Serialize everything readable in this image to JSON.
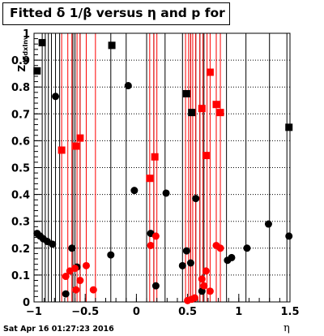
{
  "title": "Fitted δ 1/β versus η and p for",
  "timestamp": "Sat Apr 16 01:27:23 2016",
  "chart_data": {
    "type": "scatter",
    "xlabel": "η",
    "ylabel_main": "Z",
    "ylabel_sub": "dEdxInv",
    "xlim": [
      -1,
      1.5
    ],
    "ylim": [
      0,
      1
    ],
    "x_ticks": [
      "−1",
      "−0.5",
      "0",
      "0.5",
      "1",
      "1.5"
    ],
    "x_tick_values": [
      -1,
      -0.5,
      0,
      0.5,
      1,
      1.5
    ],
    "y_ticks": [
      "0",
      "0.1",
      "0.2",
      "0.3",
      "0.4",
      "0.5",
      "0.6",
      "0.7",
      "0.8",
      "0.9",
      "1"
    ],
    "y_tick_values": [
      0,
      0.1,
      0.2,
      0.3,
      0.4,
      0.5,
      0.6,
      0.7,
      0.8,
      0.9,
      1
    ],
    "grid": "horizontal dotted",
    "black_lines": [
      -0.92,
      -0.89,
      -0.86,
      -0.83,
      -0.79,
      -0.75,
      -0.62,
      -0.6,
      -0.55,
      -0.25,
      -0.1,
      0.1,
      0.17,
      0.28,
      0.45,
      0.53,
      0.58,
      0.62,
      0.66,
      0.78,
      0.88,
      1.07,
      1.3,
      1.47
    ],
    "red_lines": [
      -0.73,
      -0.67,
      -0.63,
      -0.58,
      -0.55,
      -0.49,
      -0.4,
      0.13,
      0.17,
      0.2,
      0.48,
      0.51,
      0.53,
      0.55,
      0.58,
      0.62,
      0.65,
      0.69,
      0.72,
      0.78,
      0.82
    ],
    "series": [
      {
        "color": "#000000",
        "points": [
          {
            "x": -0.97,
            "y": 0.255,
            "m": "c"
          },
          {
            "x": -0.94,
            "y": 0.245,
            "m": "c"
          },
          {
            "x": -0.91,
            "y": 0.235,
            "m": "c"
          },
          {
            "x": -0.87,
            "y": 0.225,
            "m": "c"
          },
          {
            "x": -0.82,
            "y": 0.215,
            "m": "c"
          },
          {
            "x": -0.79,
            "y": 0.765,
            "m": "c"
          },
          {
            "x": -0.63,
            "y": 0.2,
            "m": "c"
          },
          {
            "x": -0.58,
            "y": 0.13,
            "m": "c"
          },
          {
            "x": -0.69,
            "y": 0.03,
            "m": "c"
          },
          {
            "x": -0.25,
            "y": 0.175,
            "m": "c"
          },
          {
            "x": -0.08,
            "y": 0.805,
            "m": "c"
          },
          {
            "x": -0.02,
            "y": 0.415,
            "m": "c"
          },
          {
            "x": 0.14,
            "y": 0.255,
            "m": "c"
          },
          {
            "x": 0.19,
            "y": 0.06,
            "m": "c"
          },
          {
            "x": 0.29,
            "y": 0.405,
            "m": "c"
          },
          {
            "x": 0.45,
            "y": 0.135,
            "m": "c"
          },
          {
            "x": 0.49,
            "y": 0.19,
            "m": "c"
          },
          {
            "x": 0.53,
            "y": 0.145,
            "m": "c"
          },
          {
            "x": 0.58,
            "y": 0.385,
            "m": "c"
          },
          {
            "x": 0.64,
            "y": 0.04,
            "m": "c"
          },
          {
            "x": 0.89,
            "y": 0.155,
            "m": "c"
          },
          {
            "x": 0.93,
            "y": 0.165,
            "m": "c"
          },
          {
            "x": 1.08,
            "y": 0.2,
            "m": "c"
          },
          {
            "x": 1.29,
            "y": 0.29,
            "m": "c"
          },
          {
            "x": 1.49,
            "y": 0.245,
            "m": "c"
          },
          {
            "x": -0.97,
            "y": 0.86,
            "m": "s"
          },
          {
            "x": -0.92,
            "y": 0.965,
            "m": "s"
          },
          {
            "x": -0.24,
            "y": 0.955,
            "m": "s"
          },
          {
            "x": 0.49,
            "y": 0.775,
            "m": "s"
          },
          {
            "x": 0.54,
            "y": 0.705,
            "m": "s"
          },
          {
            "x": 1.49,
            "y": 0.65,
            "m": "s"
          }
        ]
      },
      {
        "color": "#ff0000",
        "points": [
          {
            "x": -0.69,
            "y": 0.095,
            "m": "c"
          },
          {
            "x": -0.65,
            "y": 0.115,
            "m": "c"
          },
          {
            "x": -0.6,
            "y": 0.125,
            "m": "c"
          },
          {
            "x": -0.59,
            "y": 0.045,
            "m": "c"
          },
          {
            "x": -0.55,
            "y": 0.08,
            "m": "c"
          },
          {
            "x": -0.49,
            "y": 0.135,
            "m": "c"
          },
          {
            "x": -0.42,
            "y": 0.045,
            "m": "c"
          },
          {
            "x": 0.14,
            "y": 0.21,
            "m": "c"
          },
          {
            "x": 0.19,
            "y": 0.245,
            "m": "c"
          },
          {
            "x": 0.5,
            "y": 0.005,
            "m": "c"
          },
          {
            "x": 0.54,
            "y": 0.01,
            "m": "c"
          },
          {
            "x": 0.57,
            "y": 0.015,
            "m": "c"
          },
          {
            "x": 0.64,
            "y": 0.085,
            "m": "c"
          },
          {
            "x": 0.66,
            "y": 0.06,
            "m": "c"
          },
          {
            "x": 0.68,
            "y": 0.115,
            "m": "c"
          },
          {
            "x": 0.72,
            "y": 0.04,
            "m": "c"
          },
          {
            "x": 0.78,
            "y": 0.21,
            "m": "c"
          },
          {
            "x": 0.82,
            "y": 0.2,
            "m": "c"
          },
          {
            "x": -0.73,
            "y": 0.565,
            "m": "s"
          },
          {
            "x": -0.59,
            "y": 0.58,
            "m": "s"
          },
          {
            "x": -0.55,
            "y": 0.61,
            "m": "s"
          },
          {
            "x": 0.13,
            "y": 0.46,
            "m": "s"
          },
          {
            "x": 0.18,
            "y": 0.54,
            "m": "s"
          },
          {
            "x": 0.64,
            "y": 0.72,
            "m": "s"
          },
          {
            "x": 0.68,
            "y": 0.545,
            "m": "s"
          },
          {
            "x": 0.72,
            "y": 0.855,
            "m": "s"
          },
          {
            "x": 0.78,
            "y": 0.735,
            "m": "s"
          },
          {
            "x": 0.82,
            "y": 0.705,
            "m": "s"
          }
        ]
      }
    ]
  }
}
